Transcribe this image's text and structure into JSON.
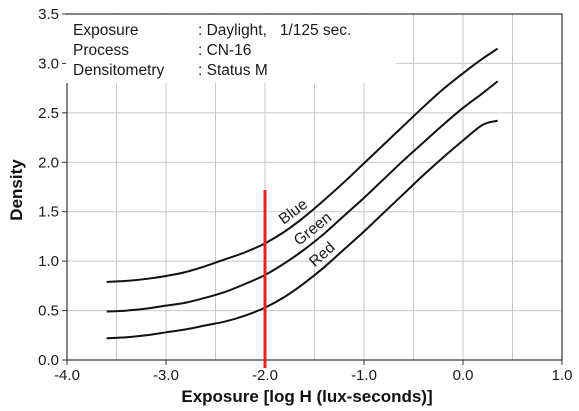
{
  "info_box": {
    "rows": [
      {
        "key": "Exposure",
        "value": ": Daylight,   1/125 sec."
      },
      {
        "key": "Process",
        "value": ": CN-16"
      },
      {
        "key": "Densitometry",
        "value": ": Status M"
      }
    ]
  },
  "chart_data": {
    "type": "line",
    "title": "",
    "xlabel": "Exposure [log H (lux-seconds)]",
    "ylabel": "Density",
    "xlim": [
      -4.0,
      1.0
    ],
    "ylim": [
      0.0,
      3.5
    ],
    "x_ticks": [
      -4.0,
      -3.0,
      -2.0,
      -1.0,
      0.0,
      1.0
    ],
    "x_tick_labels": [
      "-4.0",
      "-3.0",
      "-2.0",
      "-1.0",
      "0.0",
      "1.0"
    ],
    "y_ticks": [
      0.0,
      0.5,
      1.0,
      1.5,
      2.0,
      2.5,
      3.0,
      3.5
    ],
    "y_tick_labels": [
      "0.0",
      "0.5",
      "1.0",
      "1.5",
      "2.0",
      "2.5",
      "3.0",
      "3.5"
    ],
    "grid": true,
    "series": [
      {
        "name": "Blue",
        "x": [
          -3.6,
          -3.4,
          -3.2,
          -3.0,
          -2.8,
          -2.6,
          -2.4,
          -2.2,
          -2.0,
          -1.8,
          -1.6,
          -1.4,
          -1.2,
          -1.0,
          -0.8,
          -0.6,
          -0.4,
          -0.2,
          0.0,
          0.2,
          0.35
        ],
        "y": [
          0.79,
          0.8,
          0.82,
          0.85,
          0.89,
          0.95,
          1.02,
          1.09,
          1.18,
          1.3,
          1.45,
          1.62,
          1.8,
          1.99,
          2.18,
          2.37,
          2.56,
          2.74,
          2.9,
          3.05,
          3.15
        ]
      },
      {
        "name": "Green",
        "x": [
          -3.6,
          -3.4,
          -3.2,
          -3.0,
          -2.8,
          -2.6,
          -2.4,
          -2.2,
          -2.0,
          -1.8,
          -1.6,
          -1.4,
          -1.2,
          -1.0,
          -0.8,
          -0.6,
          -0.4,
          -0.2,
          0.0,
          0.2,
          0.35
        ],
        "y": [
          0.49,
          0.5,
          0.52,
          0.55,
          0.58,
          0.63,
          0.69,
          0.77,
          0.86,
          0.98,
          1.12,
          1.28,
          1.46,
          1.64,
          1.83,
          2.02,
          2.2,
          2.38,
          2.55,
          2.7,
          2.82
        ]
      },
      {
        "name": "Red",
        "x": [
          -3.6,
          -3.4,
          -3.2,
          -3.0,
          -2.8,
          -2.6,
          -2.4,
          -2.2,
          -2.0,
          -1.8,
          -1.6,
          -1.4,
          -1.2,
          -1.0,
          -0.8,
          -0.6,
          -0.4,
          -0.2,
          0.0,
          0.2,
          0.35
        ],
        "y": [
          0.22,
          0.23,
          0.25,
          0.28,
          0.31,
          0.35,
          0.39,
          0.45,
          0.53,
          0.64,
          0.78,
          0.94,
          1.12,
          1.3,
          1.49,
          1.68,
          1.87,
          2.05,
          2.22,
          2.38,
          2.42
        ]
      }
    ],
    "marker_line": {
      "x": -2.0,
      "y_range": [
        0.0,
        1.72
      ],
      "color": "#e0241b"
    },
    "line_color": "#111111",
    "grid_color": "#c8c8c8"
  }
}
